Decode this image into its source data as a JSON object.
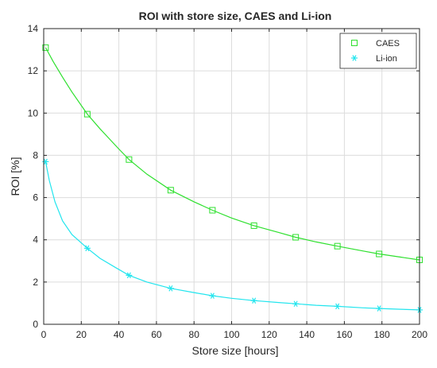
{
  "chart_data": {
    "type": "line",
    "title": "ROI with store size, CAES and Li-ion",
    "xlabel": "Store size [hours]",
    "ylabel": "ROI [%]",
    "xlim": [
      0,
      200
    ],
    "ylim": [
      0,
      14
    ],
    "xticks": [
      0,
      20,
      40,
      60,
      80,
      100,
      120,
      140,
      160,
      180,
      200
    ],
    "yticks": [
      0,
      2,
      4,
      6,
      8,
      10,
      12,
      14
    ],
    "grid": true,
    "legend_position": "top-right",
    "series": [
      {
        "name": "CAES",
        "color": "#2ee02e",
        "marker": "square",
        "markers": [
          {
            "x": 1,
            "y": 13.1
          },
          {
            "x": 23.2,
            "y": 9.95
          },
          {
            "x": 45.4,
            "y": 7.8
          },
          {
            "x": 67.6,
            "y": 6.35
          },
          {
            "x": 89.8,
            "y": 5.4
          },
          {
            "x": 111.9,
            "y": 4.67
          },
          {
            "x": 134.1,
            "y": 4.12
          },
          {
            "x": 156.3,
            "y": 3.7
          },
          {
            "x": 178.5,
            "y": 3.33
          },
          {
            "x": 200,
            "y": 3.05
          }
        ],
        "curve": [
          [
            1,
            13.1
          ],
          [
            5,
            12.45
          ],
          [
            10,
            11.7
          ],
          [
            15,
            11.0
          ],
          [
            23.2,
            9.95
          ],
          [
            30,
            9.25
          ],
          [
            40,
            8.3
          ],
          [
            45.4,
            7.8
          ],
          [
            55,
            7.1
          ],
          [
            67.6,
            6.35
          ],
          [
            80,
            5.8
          ],
          [
            89.8,
            5.4
          ],
          [
            100,
            5.03
          ],
          [
            111.9,
            4.67
          ],
          [
            125,
            4.35
          ],
          [
            134.1,
            4.12
          ],
          [
            145,
            3.9
          ],
          [
            156.3,
            3.7
          ],
          [
            170,
            3.47
          ],
          [
            178.5,
            3.33
          ],
          [
            190,
            3.18
          ],
          [
            200,
            3.05
          ]
        ]
      },
      {
        "name": "Li-ion",
        "color": "#22e5ee",
        "marker": "asterisk",
        "markers": [
          {
            "x": 1,
            "y": 7.7
          },
          {
            "x": 23.2,
            "y": 3.6
          },
          {
            "x": 45.4,
            "y": 2.32
          },
          {
            "x": 67.6,
            "y": 1.7
          },
          {
            "x": 89.8,
            "y": 1.35
          },
          {
            "x": 111.9,
            "y": 1.12
          },
          {
            "x": 134.1,
            "y": 0.97
          },
          {
            "x": 156.3,
            "y": 0.85
          },
          {
            "x": 178.5,
            "y": 0.75
          },
          {
            "x": 200,
            "y": 0.68
          }
        ],
        "curve": [
          [
            1,
            7.7
          ],
          [
            3,
            6.8
          ],
          [
            6,
            5.8
          ],
          [
            10,
            4.9
          ],
          [
            15,
            4.25
          ],
          [
            23.2,
            3.6
          ],
          [
            30,
            3.12
          ],
          [
            38,
            2.7
          ],
          [
            45.4,
            2.32
          ],
          [
            55,
            2.0
          ],
          [
            67.6,
            1.7
          ],
          [
            80,
            1.5
          ],
          [
            89.8,
            1.35
          ],
          [
            100,
            1.23
          ],
          [
            111.9,
            1.12
          ],
          [
            125,
            1.03
          ],
          [
            134.1,
            0.97
          ],
          [
            145,
            0.9
          ],
          [
            156.3,
            0.85
          ],
          [
            170,
            0.78
          ],
          [
            178.5,
            0.75
          ],
          [
            190,
            0.71
          ],
          [
            200,
            0.68
          ]
        ]
      }
    ]
  }
}
